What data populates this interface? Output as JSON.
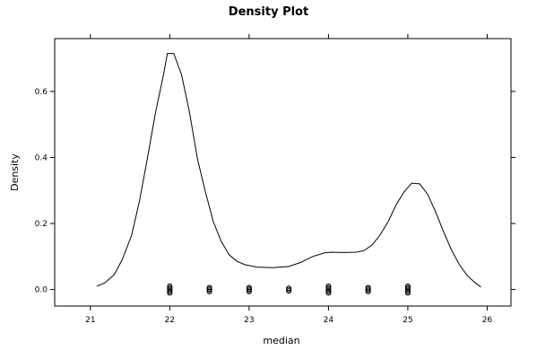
{
  "chart_data": {
    "type": "line",
    "title": "Density Plot",
    "xlabel": "median",
    "ylabel": "Density",
    "xlim": [
      20.55,
      26.3
    ],
    "ylim": [
      -0.05,
      0.76
    ],
    "x_ticks": [
      21,
      22,
      23,
      24,
      25,
      26
    ],
    "y_ticks": [
      0.0,
      0.2,
      0.4,
      0.6
    ],
    "x_tick_labels": [
      "21",
      "22",
      "23",
      "24",
      "25",
      "26"
    ],
    "y_tick_labels": [
      "0.0",
      "0.2",
      "0.4",
      "0.6"
    ],
    "grid": false,
    "series": [
      {
        "x": [
          21.08,
          21.18,
          21.3,
          21.4,
          21.52,
          21.62,
          21.72,
          21.82,
          21.92,
          21.97,
          22.05,
          22.15,
          22.25,
          22.35,
          22.45,
          22.55,
          22.65,
          22.75,
          22.85,
          22.95,
          23.1,
          23.3,
          23.5,
          23.65,
          23.8,
          23.95,
          24.05,
          24.2,
          24.35,
          24.45,
          24.55,
          24.65,
          24.75,
          24.85,
          24.95,
          25.05,
          25.15,
          25.25,
          25.35,
          25.45,
          25.55,
          25.65,
          25.75,
          25.85,
          25.92
        ],
        "y": [
          0.01,
          0.02,
          0.045,
          0.09,
          0.165,
          0.27,
          0.4,
          0.535,
          0.65,
          0.715,
          0.715,
          0.65,
          0.535,
          0.395,
          0.295,
          0.205,
          0.145,
          0.105,
          0.085,
          0.075,
          0.068,
          0.066,
          0.07,
          0.082,
          0.1,
          0.111,
          0.113,
          0.112,
          0.113,
          0.118,
          0.135,
          0.165,
          0.205,
          0.255,
          0.295,
          0.322,
          0.32,
          0.288,
          0.235,
          0.175,
          0.12,
          0.075,
          0.042,
          0.02,
          0.008
        ]
      }
    ],
    "rug": [
      {
        "x": 22.0,
        "count": 6
      },
      {
        "x": 22.5,
        "count": 4
      },
      {
        "x": 23.0,
        "count": 4
      },
      {
        "x": 23.5,
        "count": 3
      },
      {
        "x": 24.0,
        "count": 6
      },
      {
        "x": 24.5,
        "count": 4
      },
      {
        "x": 25.0,
        "count": 6
      }
    ]
  }
}
